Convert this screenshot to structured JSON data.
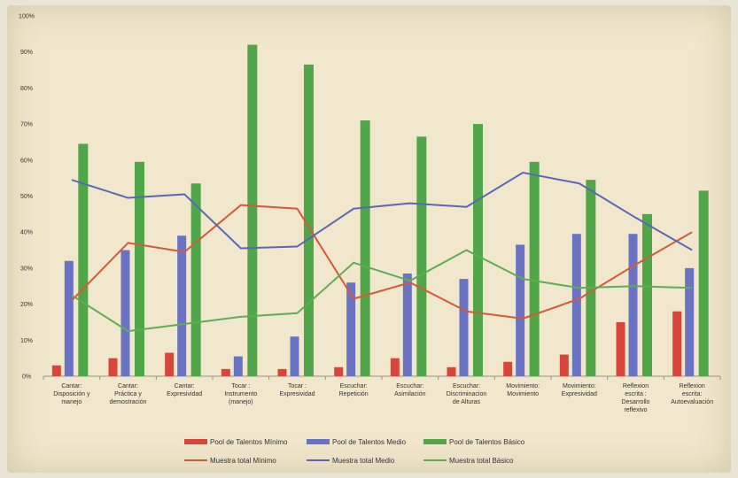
{
  "chart_data": {
    "type": "bar",
    "title": "",
    "xlabel": "",
    "ylabel": "",
    "ylim": [
      0,
      100
    ],
    "yticks": [
      "0%",
      "10%",
      "20%",
      "30%",
      "40%",
      "50%",
      "60%",
      "70%",
      "80%",
      "90%",
      "100%"
    ],
    "grid": false,
    "legend_position": "bottom",
    "categories": [
      [
        "Cantar:",
        "Disposición y",
        "manejo"
      ],
      [
        "Cantar:",
        "Práctica y",
        "demostración"
      ],
      [
        "Cantar:",
        "Expresividad"
      ],
      [
        "Tocar :",
        "Instrumento",
        "(manejo)"
      ],
      [
        "Tocar :",
        "Expresividad"
      ],
      [
        "Escuchar:",
        "Repetición"
      ],
      [
        "Escuchar:",
        "Asimilación"
      ],
      [
        "Escuchar:",
        "Discriminacion",
        "de Alturas"
      ],
      [
        "Movimiento:",
        "Movimiento"
      ],
      [
        "Movimiento:",
        "Expresividad"
      ],
      [
        "Reflexion",
        "escrita :",
        "Desarrollo",
        "reflexivo"
      ],
      [
        "Reflexion",
        "escrita:",
        "Autoevaluación"
      ]
    ],
    "bar_series": [
      {
        "name": "Pool de Talentos Mínimo",
        "color": "#d9453a",
        "values": [
          3,
          5,
          6.5,
          2,
          2,
          2.5,
          5,
          2.5,
          4,
          6,
          15,
          18
        ]
      },
      {
        "name": "Pool de Talentos Medio",
        "color": "#6a72c4",
        "values": [
          32,
          35,
          39,
          5.5,
          11,
          26,
          28.5,
          27,
          36.5,
          39.5,
          39.5,
          30
        ]
      },
      {
        "name": "Pool de Talentos Básico",
        "color": "#52a64a",
        "values": [
          64.5,
          59.5,
          53.5,
          92,
          86.5,
          71,
          66.5,
          70,
          59.5,
          54.5,
          45,
          51.5
        ]
      }
    ],
    "line_series": [
      {
        "name": "Muestra total Mínimo",
        "color": "#d35a3c",
        "values": [
          21,
          37,
          34.5,
          47.5,
          46.5,
          21.5,
          26,
          18,
          16,
          21.5,
          31,
          40
        ]
      },
      {
        "name": "Muestra total Medio",
        "color": "#5a68b4",
        "values": [
          54.5,
          49.5,
          50.5,
          35.5,
          36,
          46.5,
          48,
          47,
          56.5,
          53.5,
          44,
          35
        ]
      },
      {
        "name": "Muestra total Básico",
        "color": "#5fad55",
        "values": [
          22.5,
          12.5,
          14.5,
          16.5,
          17.5,
          31.5,
          26.5,
          35,
          27,
          24.5,
          25,
          24.5
        ]
      }
    ]
  }
}
